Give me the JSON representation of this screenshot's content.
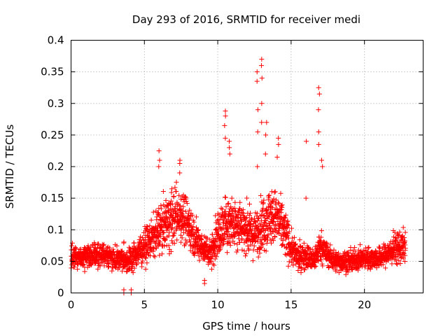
{
  "chart_data": {
    "type": "scatter",
    "title": "Day 293 of 2016, SRMTID for receiver medi",
    "xlabel": "GPS time / hours",
    "ylabel": "SRMTID / TECUs",
    "xlim": [
      0,
      24
    ],
    "ylim": [
      0,
      0.4
    ],
    "grid": true,
    "marker": "+",
    "series_color": "#ff0000",
    "x_ticks": [
      0,
      5,
      10,
      15,
      20
    ],
    "x_tick_labels": [
      "0",
      "5",
      "10",
      "15",
      "20"
    ],
    "y_ticks": [
      0,
      0.05,
      0.1,
      0.15,
      0.2,
      0.25,
      0.3,
      0.35,
      0.4
    ],
    "y_tick_labels": [
      "0",
      "0.05",
      "0.1",
      "0.15",
      "0.2",
      "0.25",
      "0.3",
      "0.35",
      "0.4"
    ],
    "profile": {
      "description": "Approximate envelope of SRMTID vs GPS time (hours) read from the plot; dense cloud of ~2800 points",
      "x": [
        0,
        1,
        2,
        3,
        4,
        4.8,
        5.5,
        6,
        6.5,
        7,
        7.5,
        8,
        8.5,
        9,
        9.5,
        10,
        10.5,
        11,
        11.5,
        12,
        12.5,
        13,
        13.5,
        14,
        14.5,
        15,
        15.5,
        16,
        16.5,
        17,
        17.5,
        18,
        19,
        20,
        21,
        21.5,
        22,
        22.8
      ],
      "center": [
        0.055,
        0.058,
        0.062,
        0.055,
        0.052,
        0.07,
        0.085,
        0.1,
        0.11,
        0.12,
        0.125,
        0.11,
        0.085,
        0.07,
        0.065,
        0.09,
        0.11,
        0.115,
        0.11,
        0.1,
        0.09,
        0.11,
        0.12,
        0.12,
        0.1,
        0.07,
        0.055,
        0.06,
        0.05,
        0.075,
        0.06,
        0.05,
        0.05,
        0.055,
        0.055,
        0.06,
        0.07,
        0.075
      ],
      "spread": [
        0.02,
        0.02,
        0.025,
        0.022,
        0.025,
        0.03,
        0.035,
        0.045,
        0.05,
        0.055,
        0.05,
        0.045,
        0.035,
        0.025,
        0.03,
        0.045,
        0.05,
        0.05,
        0.05,
        0.045,
        0.04,
        0.05,
        0.055,
        0.05,
        0.05,
        0.03,
        0.025,
        0.025,
        0.022,
        0.03,
        0.022,
        0.02,
        0.02,
        0.02,
        0.02,
        0.022,
        0.03,
        0.03
      ]
    },
    "spikes": [
      {
        "x": 6.0,
        "values": [
          0.2,
          0.21,
          0.225
        ]
      },
      {
        "x": 7.4,
        "values": [
          0.19,
          0.205,
          0.21
        ]
      },
      {
        "x": 10.5,
        "values": [
          0.245,
          0.265,
          0.28,
          0.288
        ]
      },
      {
        "x": 10.8,
        "values": [
          0.22,
          0.23,
          0.24
        ]
      },
      {
        "x": 12.7,
        "values": [
          0.2,
          0.255,
          0.29,
          0.335,
          0.35
        ]
      },
      {
        "x": 13.0,
        "values": [
          0.27,
          0.3,
          0.34,
          0.36,
          0.37
        ]
      },
      {
        "x": 13.3,
        "values": [
          0.22,
          0.25,
          0.27
        ]
      },
      {
        "x": 14.1,
        "values": [
          0.215,
          0.235,
          0.245
        ]
      },
      {
        "x": 16.0,
        "values": [
          0.15,
          0.24
        ]
      },
      {
        "x": 16.9,
        "values": [
          0.235,
          0.255,
          0.29,
          0.315,
          0.325
        ]
      },
      {
        "x": 17.1,
        "values": [
          0.2,
          0.21
        ]
      }
    ],
    "dips": [
      {
        "x": 3.6,
        "values": [
          0.0,
          0.005
        ]
      },
      {
        "x": 4.1,
        "values": [
          0.0,
          0.005
        ]
      },
      {
        "x": 9.1,
        "values": [
          0.015,
          0.02
        ]
      }
    ]
  }
}
